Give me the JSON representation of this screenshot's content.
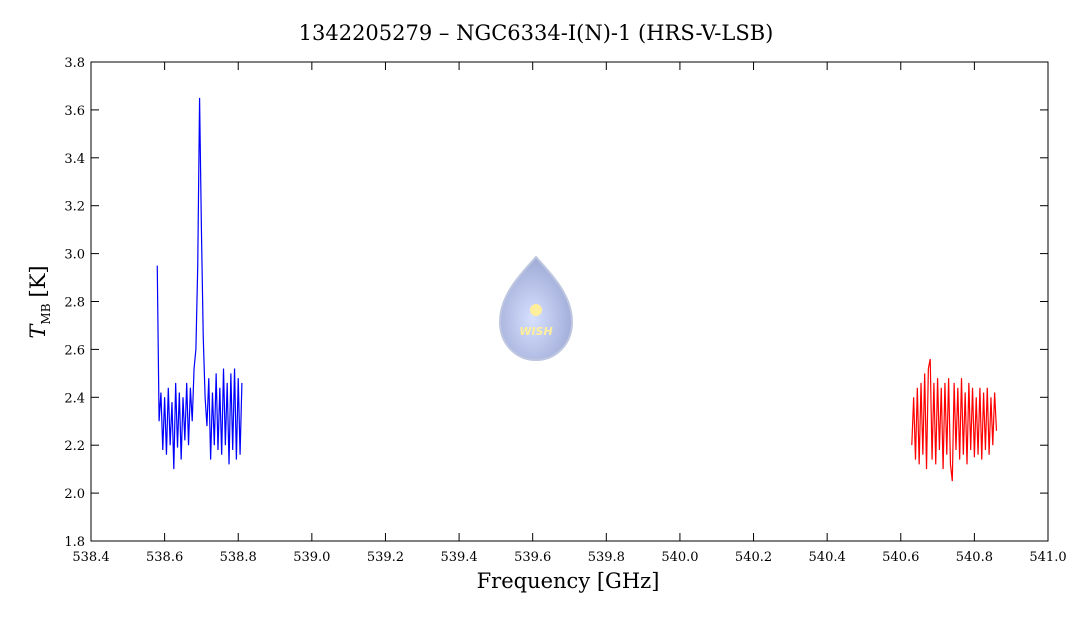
{
  "chart_data": {
    "type": "line",
    "title": "1342205279 – NGC6334-I(N)-1 (HRS-V-LSB)",
    "xlabel": "Frequency [GHz]",
    "ylabel": {
      "symbol": "T",
      "subscript": "MB",
      "unit": "[K]"
    },
    "logo_text": "WISH",
    "xlim": [
      538.4,
      541.0
    ],
    "ylim": [
      1.8,
      3.8
    ],
    "xticks": [
      538.4,
      538.6,
      538.8,
      {
        "value": 539,
        "label": "539.0"
      },
      539.2,
      539.4,
      539.6,
      539.8,
      {
        "value": 540,
        "label": "540.0"
      },
      540.2,
      540.4,
      540.6,
      540.8,
      {
        "value": 541,
        "label": "541.0"
      }
    ],
    "yticks": [
      1.8,
      {
        "value": 2,
        "label": "2.0"
      },
      2.2,
      2.4,
      2.6,
      2.8,
      {
        "value": 3,
        "label": "3.0"
      },
      3.2,
      3.4,
      3.6,
      3.8
    ],
    "series": [
      {
        "color": "#0000ff",
        "x": [
          538.58,
          538.585,
          538.59,
          538.595,
          538.6,
          538.605,
          538.61,
          538.615,
          538.62,
          538.625,
          538.63,
          538.635,
          538.64,
          538.645,
          538.65,
          538.655,
          538.66,
          538.665,
          538.67,
          538.675,
          538.68,
          538.685,
          538.69,
          538.695,
          538.7,
          538.705,
          538.71,
          538.715,
          538.72,
          538.725,
          538.73,
          538.735,
          538.74,
          538.745,
          538.75,
          538.755,
          538.76,
          538.765,
          538.77,
          538.775,
          538.78,
          538.785,
          538.79,
          538.795,
          538.8,
          538.805,
          538.81
        ],
        "values": [
          2.95,
          2.3,
          2.42,
          2.18,
          2.4,
          2.16,
          2.44,
          2.2,
          2.38,
          2.1,
          2.46,
          2.19,
          2.42,
          2.14,
          2.4,
          2.22,
          2.46,
          2.2,
          2.44,
          2.3,
          2.52,
          2.6,
          2.95,
          3.65,
          3.1,
          2.65,
          2.4,
          2.28,
          2.48,
          2.14,
          2.42,
          2.2,
          2.5,
          2.18,
          2.44,
          2.16,
          2.52,
          2.2,
          2.46,
          2.12,
          2.5,
          2.18,
          2.52,
          2.14,
          2.48,
          2.16,
          2.46
        ]
      },
      {
        "color": "#ff0000",
        "x": [
          540.63,
          540.635,
          540.64,
          540.645,
          540.65,
          540.655,
          540.66,
          540.665,
          540.67,
          540.675,
          540.68,
          540.685,
          540.69,
          540.695,
          540.7,
          540.705,
          540.71,
          540.715,
          540.72,
          540.725,
          540.73,
          540.735,
          540.74,
          540.745,
          540.75,
          540.755,
          540.76,
          540.765,
          540.77,
          540.775,
          540.78,
          540.785,
          540.79,
          540.795,
          540.8,
          540.805,
          540.81,
          540.815,
          540.82,
          540.825,
          540.83,
          540.835,
          540.84,
          540.845,
          540.85,
          540.855,
          540.86
        ],
        "values": [
          2.2,
          2.4,
          2.14,
          2.44,
          2.12,
          2.46,
          2.16,
          2.5,
          2.1,
          2.52,
          2.56,
          2.14,
          2.46,
          2.12,
          2.48,
          2.18,
          2.44,
          2.1,
          2.46,
          2.16,
          2.48,
          2.12,
          2.05,
          2.46,
          2.18,
          2.44,
          2.14,
          2.48,
          2.16,
          2.42,
          2.12,
          2.46,
          2.18,
          2.44,
          2.15,
          2.4,
          2.16,
          2.44,
          2.14,
          2.42,
          2.18,
          2.44,
          2.16,
          2.4,
          2.2,
          2.42,
          2.26
        ]
      }
    ]
  }
}
